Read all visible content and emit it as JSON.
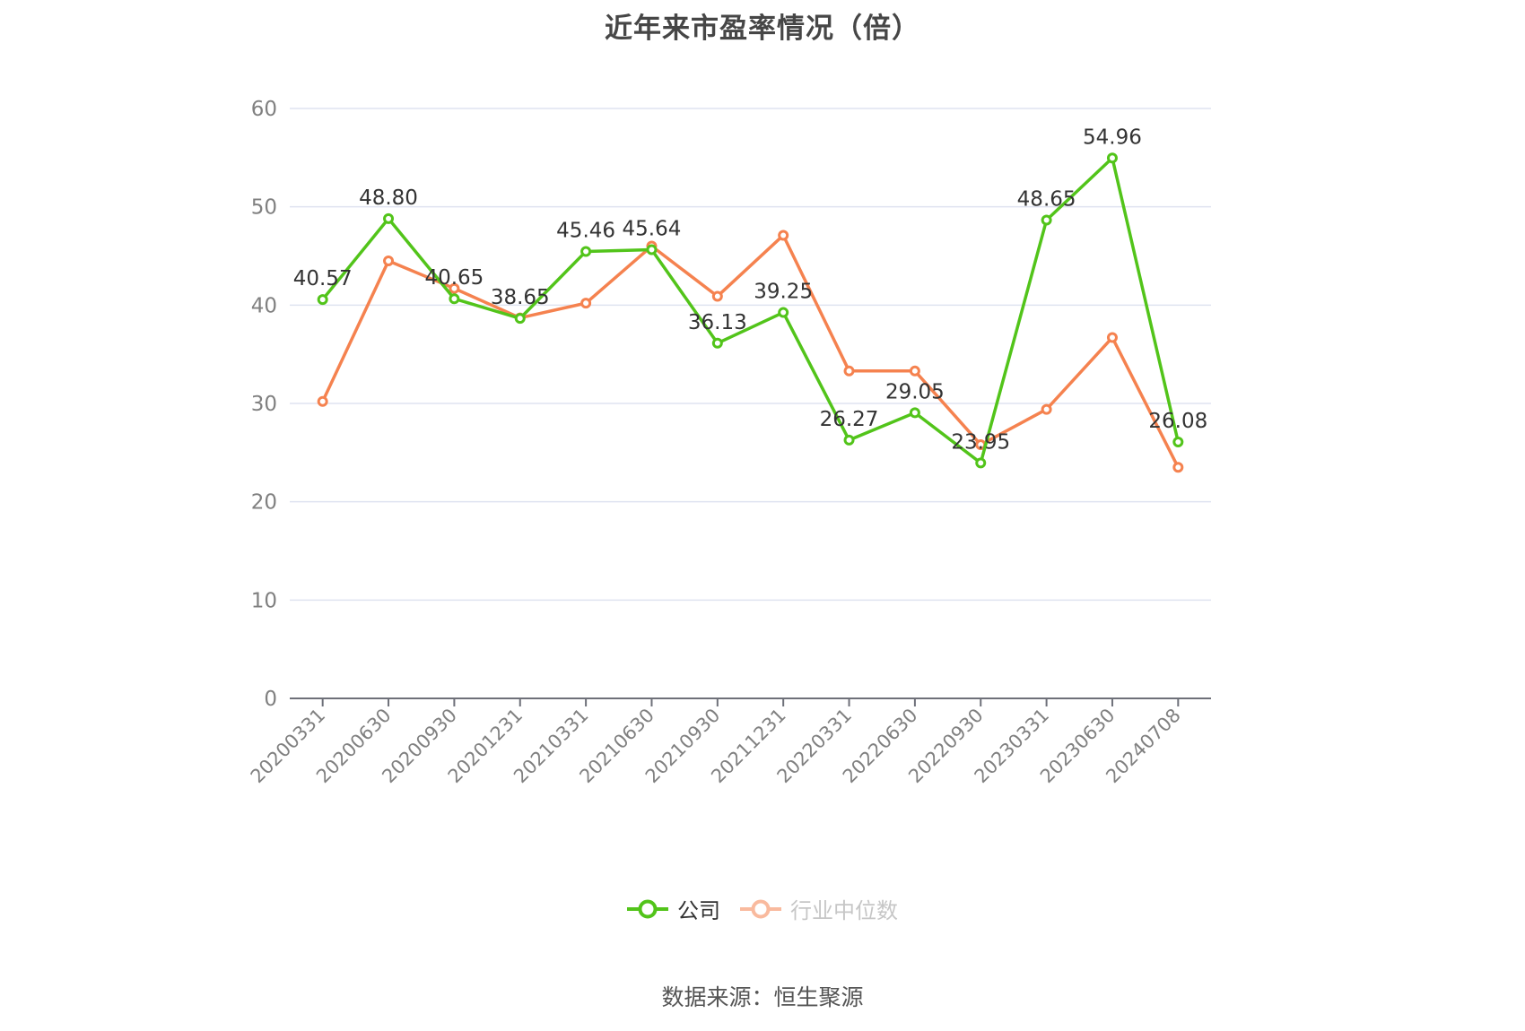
{
  "title": "近年来市盈率情况（倍）",
  "source": "数据来源：恒生聚源",
  "colors": {
    "company": "#52c41a",
    "industry": "#f5824f",
    "grid": "#dfe3f0",
    "axis": "#6e7079",
    "tick_label": "#808080",
    "data_label": "#333333"
  },
  "legend": [
    {
      "name": "公司",
      "color": "#52c41a",
      "dim": false
    },
    {
      "name": "行业中位数",
      "color": "#f5824f",
      "dim": true
    }
  ],
  "chart_data": {
    "type": "line",
    "title": "近年来市盈率情况（倍）",
    "xlabel": "",
    "ylabel": "",
    "ylim": [
      0,
      60
    ],
    "yticks": [
      0,
      10,
      20,
      30,
      40,
      50,
      60
    ],
    "grid": true,
    "legend_position": "bottom",
    "categories": [
      "20200331",
      "20200630",
      "20200930",
      "20201231",
      "20210331",
      "20210630",
      "20210930",
      "20211231",
      "20220331",
      "20220630",
      "20220930",
      "20230331",
      "20230630",
      "20240708"
    ],
    "series": [
      {
        "name": "公司",
        "values": [
          40.57,
          48.8,
          40.65,
          38.65,
          45.46,
          45.64,
          36.13,
          39.25,
          26.27,
          29.05,
          23.95,
          48.65,
          54.96,
          26.08
        ],
        "labels": [
          "40.57",
          "48.80",
          "40.65",
          "38.65",
          "45.46",
          "45.64",
          "36.13",
          "39.25",
          "26.27",
          "29.05",
          "23.95",
          "48.65",
          "54.96",
          "26.08"
        ],
        "show_labels": true
      },
      {
        "name": "行业中位数",
        "values": [
          30.2,
          44.5,
          41.7,
          38.7,
          40.2,
          46.0,
          40.9,
          47.1,
          33.3,
          33.3,
          25.8,
          29.4,
          36.7,
          23.5
        ],
        "show_labels": false
      }
    ],
    "source": "数据来源：恒生聚源"
  }
}
